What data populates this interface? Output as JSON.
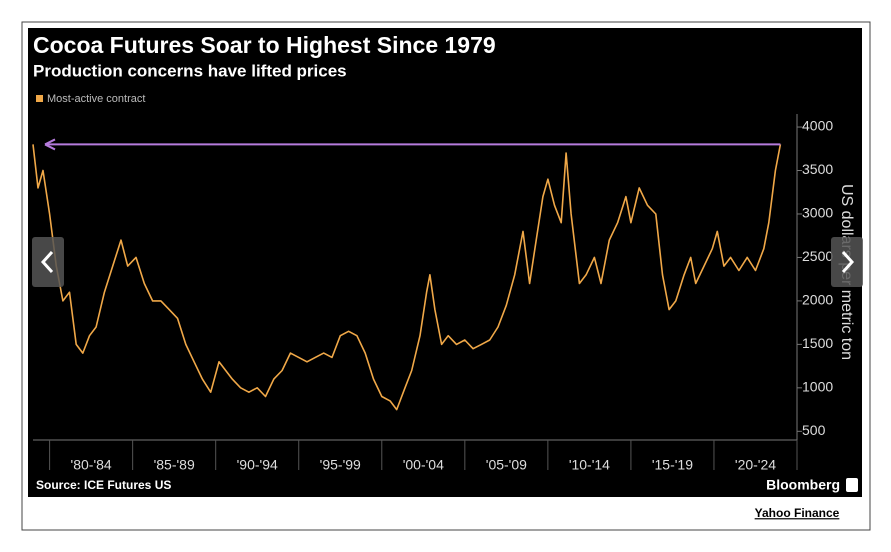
{
  "chart_data": {
    "type": "line",
    "title": "Cocoa Futures Soar to Highest Since 1979",
    "subtitle": "Production concerns have lifted prices",
    "y_label": "US dollars per metric ton",
    "source": "Source: ICE Futures US",
    "brand": "Bloomberg",
    "x": [
      1979.0,
      1979.3,
      1979.6,
      1980.0,
      1980.4,
      1980.8,
      1981.2,
      1981.6,
      1982.0,
      1982.4,
      1982.8,
      1983.3,
      1983.8,
      1984.3,
      1984.7,
      1985.2,
      1985.7,
      1986.2,
      1986.7,
      1987.2,
      1987.7,
      1988.2,
      1988.7,
      1989.2,
      1989.7,
      1990.2,
      1990.6,
      1991.0,
      1991.5,
      1992.0,
      1992.5,
      1993.0,
      1993.5,
      1994.0,
      1994.5,
      1995.0,
      1995.5,
      1996.0,
      1996.5,
      1997.0,
      1997.5,
      1998.0,
      1998.5,
      1999.0,
      1999.5,
      2000.0,
      2000.5,
      2000.9,
      2001.4,
      2001.8,
      2002.3,
      2002.7,
      2002.9,
      2003.2,
      2003.6,
      2004.0,
      2004.5,
      2005.0,
      2005.5,
      2006.0,
      2006.5,
      2007.0,
      2007.5,
      2008.0,
      2008.5,
      2008.9,
      2009.3,
      2009.7,
      2010.0,
      2010.4,
      2010.8,
      2011.1,
      2011.4,
      2011.9,
      2012.3,
      2012.8,
      2013.2,
      2013.7,
      2014.2,
      2014.7,
      2015.0,
      2015.5,
      2016.0,
      2016.5,
      2016.9,
      2017.3,
      2017.7,
      2018.2,
      2018.6,
      2018.9,
      2019.4,
      2019.9,
      2020.2,
      2020.6,
      2021.0,
      2021.5,
      2022.0,
      2022.5,
      2023.0,
      2023.3,
      2023.7,
      2024.0
    ],
    "series": [
      {
        "name": "Most-active contract",
        "color": "#f0a848",
        "values": [
          3800,
          3300,
          3500,
          3000,
          2400,
          2000,
          2100,
          1500,
          1400,
          1600,
          1700,
          2100,
          2400,
          2700,
          2400,
          2500,
          2200,
          2000,
          2000,
          1900,
          1800,
          1500,
          1300,
          1100,
          950,
          1300,
          1200,
          1100,
          1000,
          950,
          1000,
          900,
          1100,
          1200,
          1400,
          1350,
          1300,
          1350,
          1400,
          1350,
          1600,
          1650,
          1600,
          1400,
          1100,
          900,
          850,
          750,
          1000,
          1200,
          1600,
          2100,
          2300,
          1900,
          1500,
          1600,
          1500,
          1550,
          1450,
          1500,
          1550,
          1700,
          1950,
          2300,
          2800,
          2200,
          2700,
          3200,
          3400,
          3100,
          2900,
          3700,
          3000,
          2200,
          2300,
          2500,
          2200,
          2700,
          2900,
          3200,
          2900,
          3300,
          3100,
          3000,
          2300,
          1900,
          2000,
          2300,
          2500,
          2200,
          2400,
          2600,
          2800,
          2400,
          2500,
          2350,
          2500,
          2350,
          2600,
          2900,
          3500,
          3800
        ]
      }
    ],
    "reference_line": {
      "value": 3800,
      "color": "#b57bdc"
    },
    "xlim": [
      1979,
      2025
    ],
    "xticks": [
      1980,
      1985,
      1990,
      1995,
      2000,
      2005,
      2010,
      2015,
      2020,
      2025
    ],
    "x_categories": [
      "'80-'84",
      "'85-'89",
      "'90-'94",
      "'95-'99",
      "'00-'04",
      "'05-'09",
      "'10-'14",
      "'15-'19",
      "'20-'24"
    ],
    "ylim": [
      400,
      4150
    ],
    "yticks": [
      500,
      1000,
      1500,
      2000,
      2500,
      3000,
      3500,
      4000
    ]
  },
  "credit": "Yahoo Finance"
}
